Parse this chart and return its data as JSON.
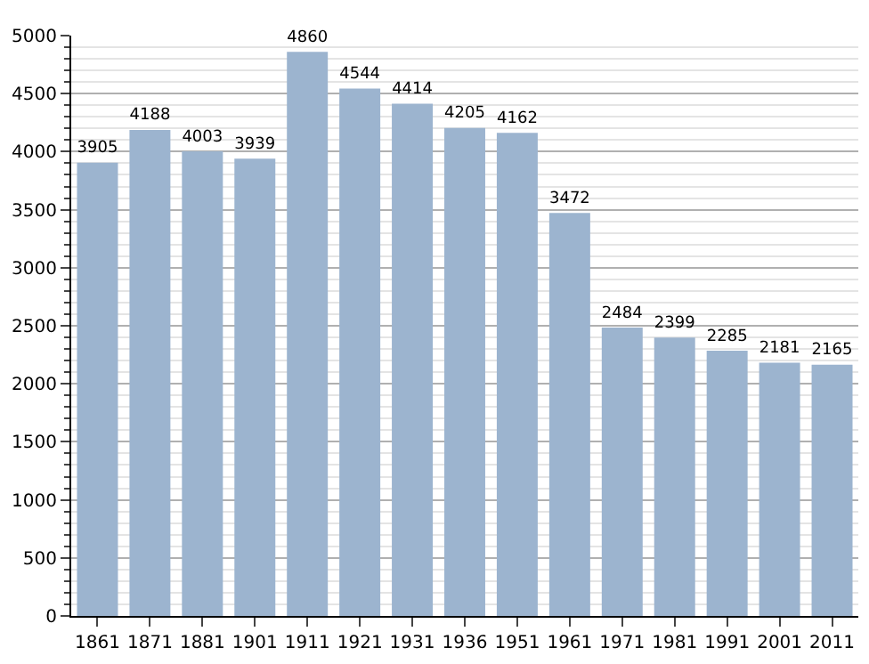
{
  "chart_data": {
    "type": "bar",
    "categories": [
      "1861",
      "1871",
      "1881",
      "1901",
      "1911",
      "1921",
      "1931",
      "1936",
      "1951",
      "1961",
      "1971",
      "1981",
      "1991",
      "2001",
      "2011"
    ],
    "values": [
      3905,
      4188,
      4003,
      3939,
      4860,
      4544,
      4414,
      4205,
      4162,
      3472,
      2484,
      2399,
      2285,
      2181,
      2165
    ],
    "color": "#9cb4cf",
    "ylim": [
      0,
      5000
    ],
    "yticks": [
      0,
      500,
      1000,
      1500,
      2000,
      2500,
      3000,
      3500,
      4000,
      4500,
      5000
    ],
    "grid": "y",
    "data_labels": true
  }
}
